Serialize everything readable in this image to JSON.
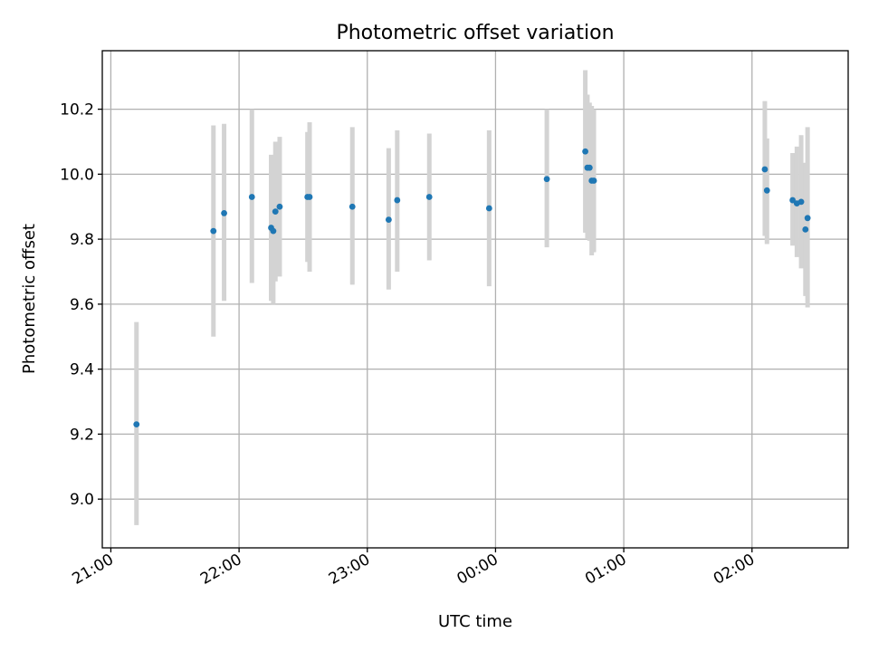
{
  "chart_data": {
    "type": "scatter",
    "title": "Photometric offset variation",
    "xlabel": "UTC time",
    "ylabel": "Photometric offset",
    "x_ticks": [
      "21:00",
      "22:00",
      "23:00",
      "00:00",
      "01:00",
      "02:00"
    ],
    "y_ticks": [
      "9.0",
      "9.2",
      "9.4",
      "9.6",
      "9.8",
      "10.0",
      "10.2"
    ],
    "xlim": [
      "20:56",
      "02:45"
    ],
    "ylim": [
      8.85,
      10.38
    ],
    "grid": true,
    "colors": {
      "point": "#1f77b4",
      "errorbar": "#d3d3d3"
    },
    "points": [
      {
        "x": "21:12",
        "y": 9.23,
        "ylow": 8.92,
        "yhigh": 9.545
      },
      {
        "x": "21:48",
        "y": 9.825,
        "ylow": 9.5,
        "yhigh": 10.15
      },
      {
        "x": "21:53",
        "y": 9.88,
        "ylow": 9.61,
        "yhigh": 10.155
      },
      {
        "x": "22:06",
        "y": 9.93,
        "ylow": 9.665,
        "yhigh": 10.2
      },
      {
        "x": "22:15",
        "y": 9.835,
        "ylow": 9.61,
        "yhigh": 10.06
      },
      {
        "x": "22:16",
        "y": 9.825,
        "ylow": 9.6,
        "yhigh": 10.05
      },
      {
        "x": "22:17",
        "y": 9.885,
        "ylow": 9.67,
        "yhigh": 10.1
      },
      {
        "x": "22:19",
        "y": 9.9,
        "ylow": 9.685,
        "yhigh": 10.115
      },
      {
        "x": "22:32",
        "y": 9.93,
        "ylow": 9.73,
        "yhigh": 10.13
      },
      {
        "x": "22:33",
        "y": 9.93,
        "ylow": 9.7,
        "yhigh": 10.16
      },
      {
        "x": "22:53",
        "y": 9.9,
        "ylow": 9.66,
        "yhigh": 10.145
      },
      {
        "x": "23:10",
        "y": 9.86,
        "ylow": 9.645,
        "yhigh": 10.08
      },
      {
        "x": "23:14",
        "y": 9.92,
        "ylow": 9.7,
        "yhigh": 10.135
      },
      {
        "x": "23:29",
        "y": 9.93,
        "ylow": 9.735,
        "yhigh": 10.125
      },
      {
        "x": "23:57",
        "y": 9.895,
        "ylow": 9.655,
        "yhigh": 10.135
      },
      {
        "x": "00:24",
        "y": 9.985,
        "ylow": 9.775,
        "yhigh": 10.2
      },
      {
        "x": "00:42",
        "y": 10.07,
        "ylow": 9.82,
        "yhigh": 10.32
      },
      {
        "x": "00:43",
        "y": 10.02,
        "ylow": 9.8,
        "yhigh": 10.245
      },
      {
        "x": "00:44",
        "y": 10.02,
        "ylow": 9.795,
        "yhigh": 10.22
      },
      {
        "x": "00:45",
        "y": 9.98,
        "ylow": 9.75,
        "yhigh": 10.21
      },
      {
        "x": "00:46",
        "y": 9.98,
        "ylow": 9.76,
        "yhigh": 10.2
      },
      {
        "x": "02:06",
        "y": 10.015,
        "ylow": 9.81,
        "yhigh": 10.225
      },
      {
        "x": "02:07",
        "y": 9.95,
        "ylow": 9.785,
        "yhigh": 10.11
      },
      {
        "x": "02:19",
        "y": 9.92,
        "ylow": 9.78,
        "yhigh": 10.065
      },
      {
        "x": "02:21",
        "y": 9.91,
        "ylow": 9.745,
        "yhigh": 10.085
      },
      {
        "x": "02:23",
        "y": 9.915,
        "ylow": 9.71,
        "yhigh": 10.12
      },
      {
        "x": "02:25",
        "y": 9.83,
        "ylow": 9.625,
        "yhigh": 10.035
      },
      {
        "x": "02:26",
        "y": 9.865,
        "ylow": 9.59,
        "yhigh": 10.145
      }
    ]
  }
}
